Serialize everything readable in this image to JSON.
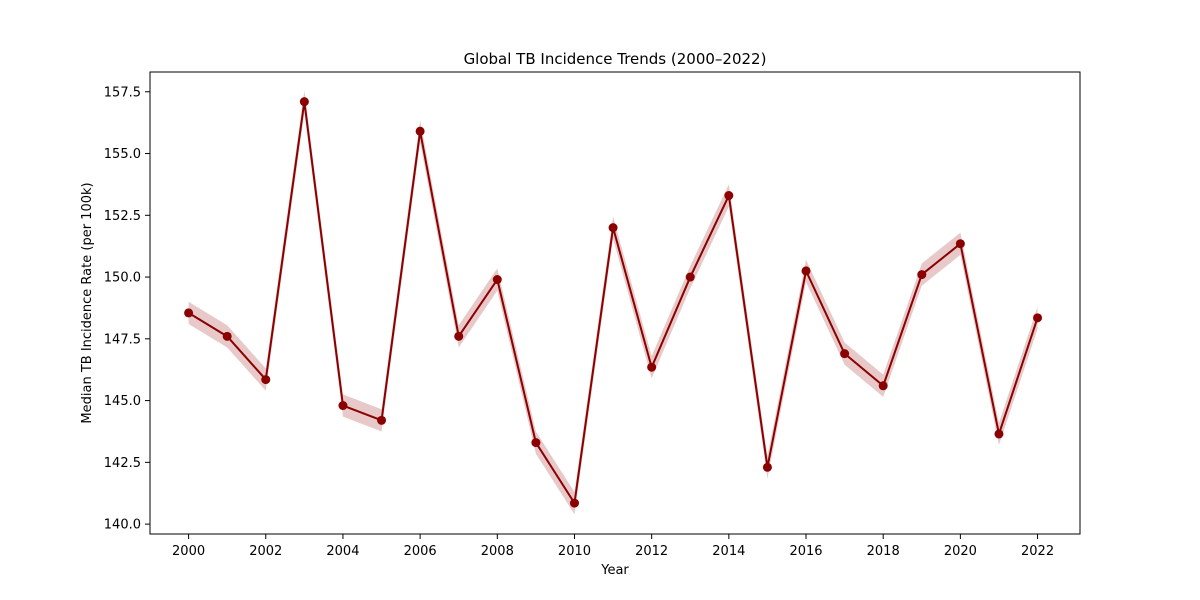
{
  "chart_data": {
    "type": "line",
    "title": "Global TB Incidence Trends (2000–2022)",
    "xlabel": "Year",
    "ylabel": "Median TB Incidence Rate (per 100k)",
    "xlim": [
      1999.0,
      2023.1
    ],
    "ylim": [
      139.6,
      158.3
    ],
    "x_ticks": [
      2000,
      2002,
      2004,
      2006,
      2008,
      2010,
      2012,
      2014,
      2016,
      2018,
      2020,
      2022
    ],
    "y_ticks": [
      "140.0",
      "142.5",
      "145.0",
      "147.5",
      "150.0",
      "152.5",
      "155.0",
      "157.5"
    ],
    "grid": false,
    "series": [
      {
        "color": "#8b0000",
        "band_color": "#d9a5a5",
        "marker": "circle",
        "x": [
          2000,
          2001,
          2002,
          2003,
          2004,
          2005,
          2006,
          2007,
          2008,
          2009,
          2010,
          2011,
          2012,
          2013,
          2014,
          2015,
          2016,
          2017,
          2018,
          2019,
          2020,
          2021,
          2022
        ],
        "y": [
          148.55,
          147.6,
          145.85,
          157.1,
          144.8,
          144.2,
          155.9,
          147.6,
          149.9,
          143.3,
          140.85,
          152.0,
          146.35,
          150.0,
          153.3,
          142.3,
          150.25,
          146.9,
          145.6,
          150.1,
          151.35,
          143.65,
          148.35
        ],
        "lower": [
          148.1,
          147.15,
          145.4,
          156.65,
          144.35,
          143.75,
          155.45,
          147.15,
          149.45,
          142.85,
          140.4,
          151.55,
          145.9,
          149.55,
          152.85,
          141.85,
          149.8,
          146.45,
          145.15,
          149.65,
          150.9,
          143.2,
          147.9
        ],
        "upper": [
          149.0,
          148.05,
          146.3,
          157.55,
          145.25,
          144.65,
          156.35,
          148.05,
          150.35,
          143.75,
          141.3,
          152.45,
          146.8,
          150.45,
          153.75,
          142.75,
          150.7,
          147.35,
          146.05,
          150.55,
          151.8,
          144.1,
          148.8
        ]
      }
    ]
  }
}
